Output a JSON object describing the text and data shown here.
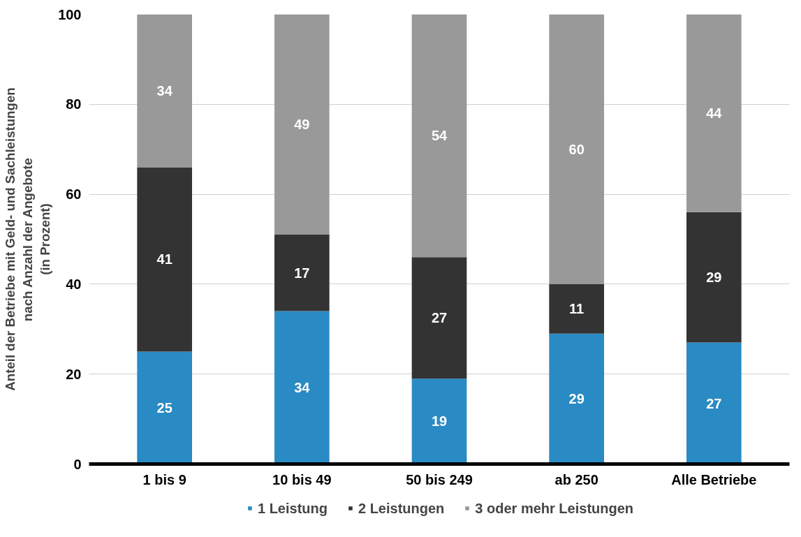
{
  "chart_data": {
    "type": "bar",
    "stacked": true,
    "ylabel": "Anteil der Betriebe mit Geld- und Sachleistungen\nnach Anzahl der Angebote\n(in Prozent)",
    "categories": [
      "1 bis 9",
      "10 bis 49",
      "50 bis 249",
      "ab 250",
      "Alle Betriebe"
    ],
    "series": [
      {
        "name": "1 Leistung",
        "color": "#2a8ac4",
        "values": [
          25,
          34,
          19,
          29,
          27
        ]
      },
      {
        "name": "2 Leistungen",
        "color": "#333333",
        "values": [
          41,
          17,
          27,
          11,
          29
        ]
      },
      {
        "name": "3 oder mehr Leistungen",
        "color": "#999999",
        "values": [
          34,
          49,
          54,
          60,
          44
        ]
      }
    ],
    "ylim": [
      0,
      100
    ],
    "yticks": [
      0,
      20,
      40,
      60,
      80,
      100
    ],
    "grid": "y",
    "legend": "bottom",
    "data_labels": true
  }
}
